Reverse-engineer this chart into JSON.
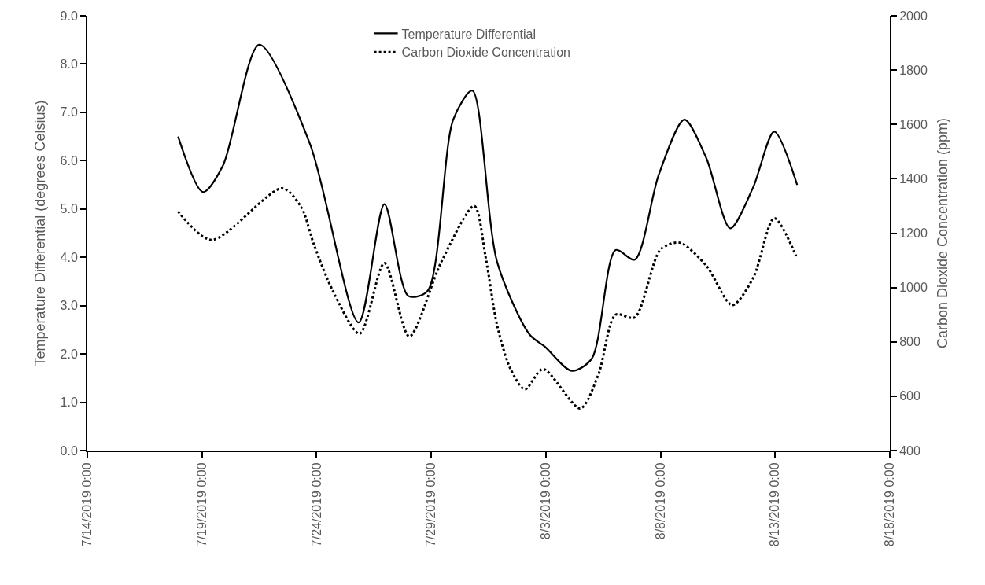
{
  "chart_data": {
    "type": "line",
    "xlabel": null,
    "ylabel": "Temperature Differential (degrees Celsius)",
    "y2label": "Carbon Dioxide Concentration (ppm)",
    "xlim": [
      "2019-07-14",
      "2019-08-18"
    ],
    "xticks": [
      {
        "value": "2019-07-14",
        "label": "7/14/2019 0:00"
      },
      {
        "value": "2019-07-19",
        "label": "7/19/2019 0:00"
      },
      {
        "value": "2019-07-24",
        "label": "7/24/2019 0:00"
      },
      {
        "value": "2019-07-29",
        "label": "7/29/2019 0:00"
      },
      {
        "value": "2019-08-03",
        "label": "8/3/2019 0:00"
      },
      {
        "value": "2019-08-08",
        "label": "8/8/2019 0:00"
      },
      {
        "value": "2019-08-13",
        "label": "8/13/2019 0:00"
      },
      {
        "value": "2019-08-18",
        "label": "8/18/2019 0:00"
      }
    ],
    "ylim": [
      0,
      9
    ],
    "yticks": [
      {
        "value": 0,
        "label": "0.0"
      },
      {
        "value": 1,
        "label": "1.0"
      },
      {
        "value": 2,
        "label": "2.0"
      },
      {
        "value": 3,
        "label": "3.0"
      },
      {
        "value": 4,
        "label": "4.0"
      },
      {
        "value": 5,
        "label": "5.0"
      },
      {
        "value": 6,
        "label": "6.0"
      },
      {
        "value": 7,
        "label": "7.0"
      },
      {
        "value": 8,
        "label": "8.0"
      },
      {
        "value": 9,
        "label": "9.0"
      }
    ],
    "y2lim": [
      400,
      2000
    ],
    "y2ticks": [
      400,
      600,
      800,
      1000,
      1200,
      1400,
      1600,
      1800,
      2000
    ],
    "legend": "top",
    "series": [
      {
        "name": "Temperature Differential",
        "color": "#000000",
        "line_style": "solid",
        "x": [
          "2019-07-17T23:00",
          "2019-07-19T01:00",
          "2019-07-19T22:00",
          "2019-07-21T12:00",
          "2019-07-23T17:00",
          "2019-07-25T20:00",
          "2019-07-26T23:00",
          "2019-07-28T00:00",
          "2019-07-28T20:00",
          "2019-07-29T23:00",
          "2019-07-30T19:00",
          "2019-07-31T21:00",
          "2019-08-02T07:00",
          "2019-08-02T23:00",
          "2019-08-04T03:00",
          "2019-08-05T00:00",
          "2019-08-06T01:00",
          "2019-08-06T21:00",
          "2019-08-07T22:00",
          "2019-08-09T01:00",
          "2019-08-10T00:00",
          "2019-08-11T01:00",
          "2019-08-12T01:00",
          "2019-08-12T23:00",
          "2019-08-13T23:00"
        ],
        "values": [
          6.5,
          5.35,
          5.9,
          8.4,
          6.35,
          2.65,
          5.1,
          3.2,
          3.3,
          6.85,
          7.45,
          3.9,
          2.4,
          2.15,
          1.65,
          1.9,
          4.15,
          3.95,
          5.7,
          6.85,
          6.05,
          4.6,
          5.45,
          6.6,
          5.5
        ]
      },
      {
        "name": "Carbon Dioxide Concentration",
        "color": "#000000",
        "line_style": "dotted",
        "axis": "y2",
        "x": [
          "2019-07-17T23:00",
          "2019-07-19T10:00",
          "2019-07-22T12:00",
          "2019-07-23T08:00",
          "2019-07-23T21:00",
          "2019-07-24T16:00",
          "2019-07-25T21:00",
          "2019-07-26T23:00",
          "2019-07-28T01:00",
          "2019-07-29T10:00",
          "2019-07-30T21:00",
          "2019-07-31T09:00",
          "2019-07-31T21:00",
          "2019-08-01T11:00",
          "2019-08-02T02:00",
          "2019-08-02T21:00",
          "2019-08-04T12:00",
          "2019-08-05T07:00",
          "2019-08-06T01:00",
          "2019-08-06T21:00",
          "2019-08-08T00:00",
          "2019-08-08T20:00",
          "2019-08-10T00:00",
          "2019-08-11T03:00",
          "2019-08-12T01:00",
          "2019-08-12T23:00",
          "2019-08-13T22:00"
        ],
        "values": [
          1280,
          1175,
          1365,
          1295,
          1160,
          995,
          830,
          1090,
          820,
          1090,
          1300,
          1110,
          860,
          700,
          625,
          700,
          555,
          680,
          900,
          890,
          1140,
          1165,
          1080,
          935,
          1035,
          1255,
          1115
        ]
      }
    ]
  }
}
